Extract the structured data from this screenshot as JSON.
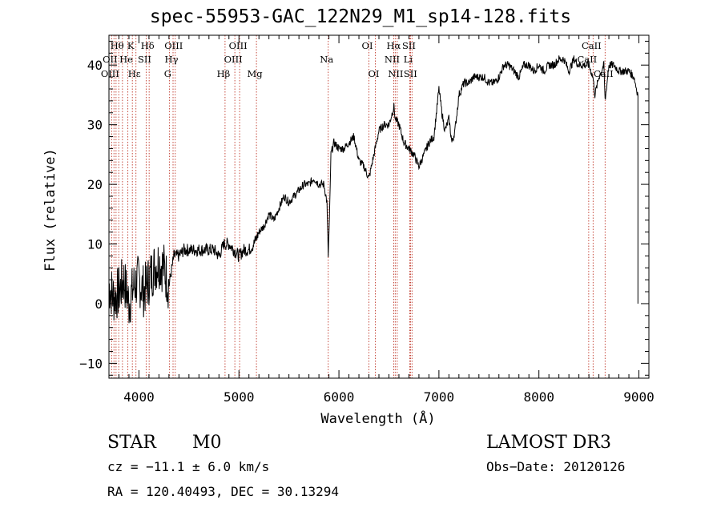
{
  "chart_data": {
    "type": "line",
    "title": "spec-55953-GAC_122N29_M1_sp14-128.fits",
    "xlabel": "Wavelength (Å)",
    "ylabel": "Flux (relative)",
    "xlim": [
      3700,
      9100
    ],
    "ylim": [
      -12.5,
      45
    ],
    "xticks": [
      4000,
      5000,
      6000,
      7000,
      8000,
      9000
    ],
    "yticks": [
      -10,
      0,
      10,
      20,
      30,
      40
    ],
    "grid": false,
    "series": [
      {
        "name": "spectrum",
        "x": [
          3700,
          3750,
          3800,
          3850,
          3900,
          3950,
          4000,
          4050,
          4100,
          4150,
          4200,
          4250,
          4300,
          4350,
          4400,
          4450,
          4500,
          4550,
          4600,
          4650,
          4700,
          4750,
          4800,
          4850,
          4900,
          4950,
          5000,
          5050,
          5100,
          5150,
          5200,
          5250,
          5300,
          5350,
          5400,
          5450,
          5500,
          5550,
          5600,
          5650,
          5700,
          5750,
          5800,
          5850,
          5880,
          5893,
          5905,
          5920,
          5950,
          6000,
          6050,
          6100,
          6150,
          6200,
          6250,
          6300,
          6350,
          6400,
          6450,
          6500,
          6550,
          6563,
          6600,
          6650,
          6700,
          6750,
          6800,
          6850,
          6900,
          6950,
          7000,
          7030,
          7060,
          7100,
          7130,
          7160,
          7200,
          7250,
          7300,
          7350,
          7400,
          7450,
          7500,
          7550,
          7600,
          7650,
          7700,
          7750,
          7800,
          7850,
          7900,
          7950,
          8000,
          8050,
          8100,
          8150,
          8200,
          8250,
          8300,
          8350,
          8400,
          8450,
          8500,
          8540,
          8560,
          8600,
          8650,
          8662,
          8700,
          8750,
          8800,
          8850,
          8900,
          8950,
          8990
        ],
        "values": [
          3,
          1,
          2,
          4,
          0,
          3,
          4,
          2,
          4,
          6,
          7,
          6,
          3,
          8,
          8,
          9,
          9,
          9,
          9,
          9,
          9,
          9,
          8,
          10,
          10,
          9,
          8,
          9,
          9,
          10,
          12,
          13,
          15,
          14,
          16,
          18,
          17,
          18,
          19,
          20,
          20,
          21,
          20,
          20,
          17,
          8,
          14,
          25,
          27,
          26,
          26,
          27,
          28,
          24,
          23,
          21,
          25,
          29,
          30,
          30,
          33,
          31,
          30,
          27,
          26,
          25,
          23,
          25,
          27,
          28,
          36,
          32,
          29,
          31,
          27,
          29,
          35,
          37,
          37,
          38,
          38,
          38,
          37,
          37,
          38,
          40,
          40,
          39,
          38,
          40,
          40,
          39,
          40,
          39,
          40,
          40,
          41,
          41,
          39,
          41,
          40,
          40,
          40,
          38,
          35,
          38,
          40,
          34,
          40,
          40,
          39,
          39,
          39,
          38,
          35
        ]
      }
    ],
    "annotations": [
      {
        "text": "Hθ",
        "x": 3798,
        "row": 1
      },
      {
        "text": "K",
        "x": 3934,
        "row": 1
      },
      {
        "text": "Hδ",
        "x": 4102,
        "row": 1
      },
      {
        "text": "OIII",
        "x": 4363,
        "row": 1
      },
      {
        "text": "OIII",
        "x": 5007,
        "row": 1
      },
      {
        "text": "OI",
        "x": 6300,
        "row": 1
      },
      {
        "text": "Hα",
        "x": 6563,
        "row": 1
      },
      {
        "text": "SII",
        "x": 6716,
        "row": 1
      },
      {
        "text": "CaII",
        "x": 8542,
        "row": 1
      },
      {
        "text": "OII",
        "x": 3727,
        "row": 2
      },
      {
        "text": "He",
        "x": 3889,
        "row": 2
      },
      {
        "text": "SII",
        "x": 4072,
        "row": 2
      },
      {
        "text": "Hγ",
        "x": 4341,
        "row": 2
      },
      {
        "text": "OIII",
        "x": 4959,
        "row": 2
      },
      {
        "text": "Na",
        "x": 5893,
        "row": 2
      },
      {
        "text": "NII",
        "x": 6548,
        "row": 2
      },
      {
        "text": "Li",
        "x": 6708,
        "row": 2
      },
      {
        "text": "CaII",
        "x": 8498,
        "row": 2
      },
      {
        "text": "OIII",
        "x": 3727,
        "row": 3
      },
      {
        "text": "Hε",
        "x": 3970,
        "row": 3
      },
      {
        "text": "G",
        "x": 4304,
        "row": 3
      },
      {
        "text": "Hβ",
        "x": 4861,
        "row": 3
      },
      {
        "text": "Mg",
        "x": 5175,
        "row": 3
      },
      {
        "text": "OI",
        "x": 6364,
        "row": 3
      },
      {
        "text": "NII",
        "x": 6583,
        "row": 3
      },
      {
        "text": "SII",
        "x": 6731,
        "row": 3
      },
      {
        "text": "CaII",
        "x": 8662,
        "row": 3
      }
    ],
    "line_markers": [
      3727,
      3750,
      3771,
      3798,
      3835,
      3889,
      3934,
      3970,
      4072,
      4102,
      4304,
      4341,
      4363,
      4861,
      4959,
      5007,
      5175,
      5893,
      6300,
      6364,
      6548,
      6563,
      6583,
      6708,
      6716,
      6731,
      8498,
      8542,
      8662
    ]
  },
  "info": {
    "object_class": "STAR",
    "subclass": "M0",
    "survey": "LAMOST DR3",
    "redshift": "cz = −11.1 ± 6.0 km/s",
    "obs_date": "Obs−Date: 20120126",
    "coords": "RA = 120.40493, DEC =  30.13294"
  }
}
